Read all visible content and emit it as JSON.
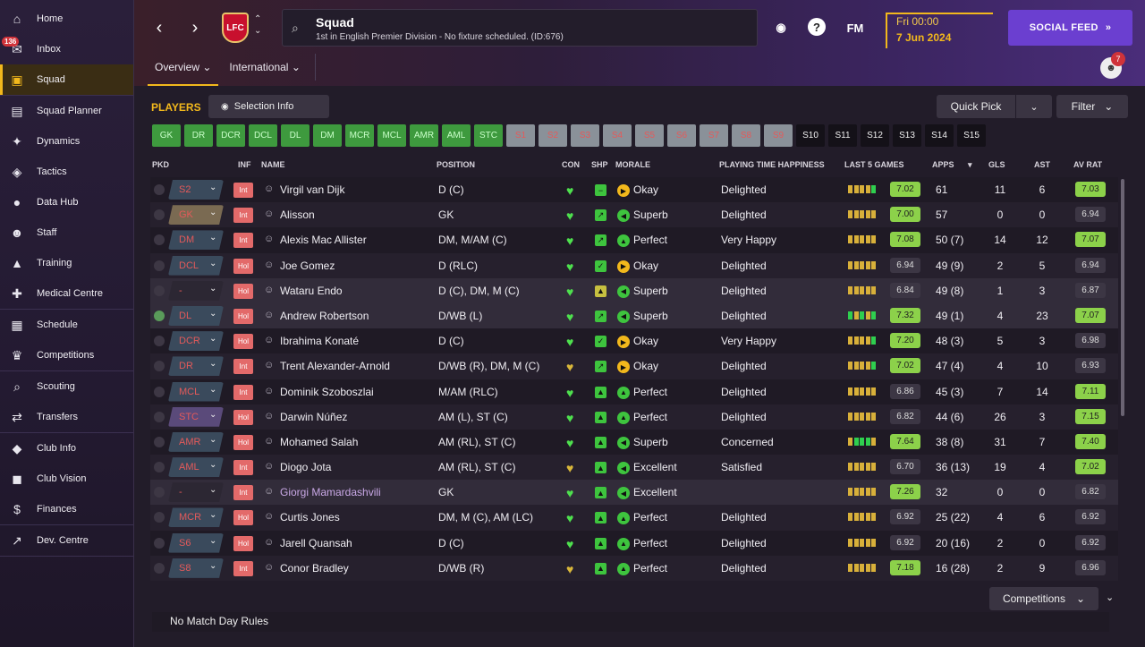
{
  "sidebar": {
    "groups": [
      [
        {
          "label": "Home",
          "icon": "⌂",
          "name": "home"
        },
        {
          "label": "Inbox",
          "icon": "✉",
          "name": "inbox"
        },
        {
          "label": "Squad",
          "icon": "▣",
          "name": "squad",
          "active": true
        }
      ],
      [
        {
          "label": "Squad Planner",
          "icon": "▤",
          "name": "squad-planner"
        },
        {
          "label": "Dynamics",
          "icon": "✦",
          "name": "dynamics"
        },
        {
          "label": "Tactics",
          "icon": "◈",
          "name": "tactics"
        },
        {
          "label": "Data Hub",
          "icon": "●",
          "name": "data-hub"
        },
        {
          "label": "Staff",
          "icon": "☻",
          "name": "staff"
        },
        {
          "label": "Training",
          "icon": "▲",
          "name": "training"
        },
        {
          "label": "Medical Centre",
          "icon": "✚",
          "name": "medical-centre"
        }
      ],
      [
        {
          "label": "Schedule",
          "icon": "▦",
          "name": "schedule"
        },
        {
          "label": "Competitions",
          "icon": "♛",
          "name": "competitions"
        }
      ],
      [
        {
          "label": "Scouting",
          "icon": "⌕",
          "name": "scouting"
        },
        {
          "label": "Transfers",
          "icon": "⇄",
          "name": "transfers"
        }
      ],
      [
        {
          "label": "Club Info",
          "icon": "◆",
          "name": "club-info"
        },
        {
          "label": "Club Vision",
          "icon": "◼",
          "name": "club-vision"
        },
        {
          "label": "Finances",
          "icon": "$",
          "name": "finances"
        }
      ],
      [
        {
          "label": "Dev. Centre",
          "icon": "↗",
          "name": "dev-centre"
        }
      ]
    ],
    "inbox_badge": "136"
  },
  "header": {
    "title": "Squad",
    "subtitle": "1st in English Premier Division - No fixture scheduled. (ID:676)",
    "crest_text": "LFC",
    "fm_label": "FM",
    "date_line1": "Fri 00:00",
    "date_line2": "7 Jun 2024",
    "social_label": "SOCIAL FEED",
    "tabs": [
      "Overview",
      "International"
    ],
    "avatar_badge": "7"
  },
  "toolbar": {
    "players_label": "PLAYERS",
    "selection_info": "Selection Info",
    "quick_pick": "Quick Pick",
    "filter": "Filter"
  },
  "positions": [
    {
      "label": "GK",
      "style": "green"
    },
    {
      "label": "DR",
      "style": "green"
    },
    {
      "label": "DCR",
      "style": "green"
    },
    {
      "label": "DCL",
      "style": "green"
    },
    {
      "label": "DL",
      "style": "green"
    },
    {
      "label": "DM",
      "style": "green"
    },
    {
      "label": "MCR",
      "style": "green"
    },
    {
      "label": "MCL",
      "style": "green"
    },
    {
      "label": "AMR",
      "style": "green"
    },
    {
      "label": "AML",
      "style": "green"
    },
    {
      "label": "STC",
      "style": "green"
    },
    {
      "label": "S1",
      "style": "gray"
    },
    {
      "label": "S2",
      "style": "gray"
    },
    {
      "label": "S3",
      "style": "gray"
    },
    {
      "label": "S4",
      "style": "gray"
    },
    {
      "label": "S5",
      "style": "gray"
    },
    {
      "label": "S6",
      "style": "gray"
    },
    {
      "label": "S7",
      "style": "gray"
    },
    {
      "label": "S8",
      "style": "gray"
    },
    {
      "label": "S9",
      "style": "gray"
    },
    {
      "label": "S10",
      "style": "dark"
    },
    {
      "label": "S11",
      "style": "dark"
    },
    {
      "label": "S12",
      "style": "dark"
    },
    {
      "label": "S13",
      "style": "dark"
    },
    {
      "label": "S14",
      "style": "dark"
    },
    {
      "label": "S15",
      "style": "dark"
    }
  ],
  "columns": {
    "pkd": "PKD",
    "inf": "INF",
    "name": "NAME",
    "position": "POSITION",
    "con": "CON",
    "shp": "SHP",
    "morale": "MORALE",
    "happiness": "PLAYING TIME HAPPINESS",
    "last5": "LAST 5 GAMES",
    "apps": "APPS",
    "gls": "GLS",
    "ast": "AST",
    "avrat": "AV RAT"
  },
  "players": [
    {
      "pkd": "S2",
      "inf": "Int",
      "name": "Virgil van Dijk",
      "position": "D (C)",
      "morale": "Okay",
      "happiness": "Delighted",
      "last": "7.02",
      "apps": "61",
      "gls": "11",
      "ast": "6",
      "avrat": "7.03"
    },
    {
      "pkd": "GK",
      "inf": "Int",
      "name": "Alisson",
      "position": "GK",
      "morale": "Superb",
      "happiness": "Delighted",
      "last": "7.00",
      "apps": "57",
      "gls": "0",
      "ast": "0",
      "avrat": "6.94"
    },
    {
      "pkd": "DM",
      "inf": "Int",
      "name": "Alexis Mac Allister",
      "position": "DM, M/AM (C)",
      "morale": "Perfect",
      "happiness": "Very Happy",
      "last": "7.08",
      "apps": "50 (7)",
      "gls": "14",
      "ast": "12",
      "avrat": "7.07"
    },
    {
      "pkd": "DCL",
      "inf": "Hol",
      "name": "Joe Gomez",
      "position": "D (RLC)",
      "morale": "Okay",
      "happiness": "Delighted",
      "last": "6.94",
      "apps": "49 (9)",
      "gls": "2",
      "ast": "5",
      "avrat": "6.94"
    },
    {
      "pkd": "-",
      "inf": "Hol",
      "name": "Wataru Endo",
      "position": "D (C), DM, M (C)",
      "morale": "Superb",
      "happiness": "Delighted",
      "last": "6.84",
      "apps": "49 (8)",
      "gls": "1",
      "ast": "3",
      "avrat": "6.87"
    },
    {
      "pkd": "DL",
      "inf": "Hol",
      "name": "Andrew Robertson",
      "position": "D/WB (L)",
      "morale": "Superb",
      "happiness": "Delighted",
      "last": "7.32",
      "apps": "49 (1)",
      "gls": "4",
      "ast": "23",
      "avrat": "7.07"
    },
    {
      "pkd": "DCR",
      "inf": "Hol",
      "name": "Ibrahima Konaté",
      "position": "D (C)",
      "morale": "Okay",
      "happiness": "Very Happy",
      "last": "7.20",
      "apps": "48 (3)",
      "gls": "5",
      "ast": "3",
      "avrat": "6.98"
    },
    {
      "pkd": "DR",
      "inf": "Int",
      "name": "Trent Alexander-Arnold",
      "position": "D/WB (R), DM, M (C)",
      "morale": "Okay",
      "happiness": "Delighted",
      "last": "7.02",
      "apps": "47 (4)",
      "gls": "4",
      "ast": "10",
      "avrat": "6.93"
    },
    {
      "pkd": "MCL",
      "inf": "Int",
      "name": "Dominik Szoboszlai",
      "position": "M/AM (RLC)",
      "morale": "Perfect",
      "happiness": "Delighted",
      "last": "6.86",
      "apps": "45 (3)",
      "gls": "7",
      "ast": "14",
      "avrat": "7.11"
    },
    {
      "pkd": "STC",
      "inf": "Hol",
      "name": "Darwin Núñez",
      "position": "AM (L), ST (C)",
      "morale": "Perfect",
      "happiness": "Delighted",
      "last": "6.82",
      "apps": "44 (6)",
      "gls": "26",
      "ast": "3",
      "avrat": "7.15"
    },
    {
      "pkd": "AMR",
      "inf": "Hol",
      "name": "Mohamed Salah",
      "position": "AM (RL), ST (C)",
      "morale": "Superb",
      "happiness": "Concerned",
      "last": "7.64",
      "apps": "38 (8)",
      "gls": "31",
      "ast": "7",
      "avrat": "7.40"
    },
    {
      "pkd": "AML",
      "inf": "Int",
      "name": "Diogo Jota",
      "position": "AM (RL), ST (C)",
      "morale": "Excellent",
      "happiness": "Satisfied",
      "last": "6.70",
      "apps": "36 (13)",
      "gls": "19",
      "ast": "4",
      "avrat": "7.02"
    },
    {
      "pkd": "-",
      "inf": "Int",
      "name": "Giorgi Mamardashvili",
      "position": "GK",
      "morale": "Excellent",
      "happiness": "",
      "last": "7.26",
      "apps": "32",
      "gls": "0",
      "ast": "0",
      "avrat": "6.82"
    },
    {
      "pkd": "MCR",
      "inf": "Hol",
      "name": "Curtis Jones",
      "position": "DM, M (C), AM (LC)",
      "morale": "Perfect",
      "happiness": "Delighted",
      "last": "6.92",
      "apps": "25 (22)",
      "gls": "4",
      "ast": "6",
      "avrat": "6.92"
    },
    {
      "pkd": "S6",
      "inf": "Hol",
      "name": "Jarell Quansah",
      "position": "D (C)",
      "morale": "Perfect",
      "happiness": "Delighted",
      "last": "6.92",
      "apps": "20 (16)",
      "gls": "2",
      "ast": "0",
      "avrat": "6.92"
    },
    {
      "pkd": "S8",
      "inf": "Int",
      "name": "Conor Bradley",
      "position": "D/WB (R)",
      "morale": "Perfect",
      "happiness": "Delighted",
      "last": "7.18",
      "apps": "16 (28)",
      "gls": "2",
      "ast": "9",
      "avrat": "6.96"
    }
  ],
  "footer": {
    "competitions": "Competitions",
    "rules": "No Match Day Rules"
  }
}
